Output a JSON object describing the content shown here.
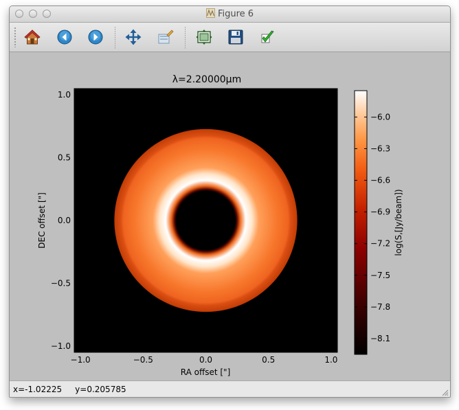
{
  "window": {
    "title": "Figure 6"
  },
  "toolbar": {
    "buttons": [
      {
        "name": "home-button",
        "icon": "home-icon"
      },
      {
        "name": "back-button",
        "icon": "arrow-left-icon"
      },
      {
        "name": "forward-button",
        "icon": "arrow-right-icon"
      },
      {
        "name": "pan-button",
        "icon": "move-arrows-icon"
      },
      {
        "name": "zoom-button",
        "icon": "zoom-rect-icon"
      },
      {
        "name": "subplots-button",
        "icon": "subplots-icon"
      },
      {
        "name": "save-button",
        "icon": "floppy-disk-icon"
      },
      {
        "name": "edit-button",
        "icon": "checkmark-icon"
      }
    ]
  },
  "status": {
    "text": "x=-1.02225     y=0.205785"
  },
  "chart_data": {
    "type": "heatmap",
    "title": "λ=2.20000μm",
    "xlabel": "RA offset [\"]",
    "ylabel": "DEC offset [\"]",
    "xlim": [
      -1.05,
      1.05
    ],
    "ylim": [
      -1.05,
      1.05
    ],
    "xticks": [
      {
        "value": -1.0,
        "label": "−1.0"
      },
      {
        "value": -0.5,
        "label": "−0.5"
      },
      {
        "value": 0.0,
        "label": "0.0"
      },
      {
        "value": 0.5,
        "label": "0.5"
      },
      {
        "value": 1.0,
        "label": "1.0"
      }
    ],
    "yticks": [
      {
        "value": -1.0,
        "label": "−1.0"
      },
      {
        "value": -0.5,
        "label": "−0.5"
      },
      {
        "value": 0.0,
        "label": "0.0"
      },
      {
        "value": 0.5,
        "label": "0.5"
      },
      {
        "value": 1.0,
        "label": "1.0"
      }
    ],
    "image": {
      "shape": "ring",
      "inner_radius": 0.25,
      "outer_radius": 0.73,
      "peak_radius": 0.32,
      "background_value": -8.25
    },
    "colorbar": {
      "label": "log(S,[Jy/beam])",
      "colormap": "gist_heat",
      "vmin": -8.25,
      "vmax": -5.75,
      "ticks": [
        {
          "value": -6.0,
          "label": "−6.0"
        },
        {
          "value": -6.3,
          "label": "−6.3"
        },
        {
          "value": -6.6,
          "label": "−6.6"
        },
        {
          "value": -6.9,
          "label": "−6.9"
        },
        {
          "value": -7.2,
          "label": "−7.2"
        },
        {
          "value": -7.5,
          "label": "−7.5"
        },
        {
          "value": -7.8,
          "label": "−7.8"
        },
        {
          "value": -8.1,
          "label": "−8.1"
        }
      ]
    }
  }
}
